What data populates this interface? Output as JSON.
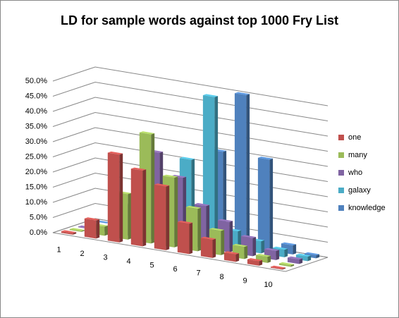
{
  "chart_data": {
    "type": "bar3d",
    "title": "LD for sample words against top 1000 Fry List",
    "categories": [
      "1",
      "2",
      "3",
      "4",
      "5",
      "6",
      "7",
      "8",
      "9",
      "10"
    ],
    "series": [
      {
        "name": "one",
        "color": "#c0504d",
        "values": [
          0.5,
          6,
          29,
          25,
          21,
          10,
          6,
          2.5,
          1.5,
          0.3
        ]
      },
      {
        "name": "many",
        "color": "#9bbb59",
        "values": [
          0.3,
          3,
          15,
          36,
          23,
          14,
          8,
          4,
          2,
          0.5
        ]
      },
      {
        "name": "who",
        "color": "#8064a2",
        "values": [
          0.2,
          1.5,
          10,
          29,
          22,
          14,
          10,
          6,
          3,
          1.5
        ]
      },
      {
        "name": "galaxy",
        "color": "#4bacc6",
        "values": [
          0.1,
          1.5,
          4,
          6,
          27,
          49,
          6,
          4,
          2.5,
          1.5
        ]
      },
      {
        "name": "knowledge",
        "color": "#4f81bd",
        "values": [
          0,
          0.5,
          2,
          3,
          5,
          30,
          50,
          30,
          3,
          1
        ]
      }
    ],
    "ylim": [
      0,
      50
    ],
    "yticks": [
      {
        "value": 0,
        "label": "0.0%"
      },
      {
        "value": 5,
        "label": "5.0%"
      },
      {
        "value": 10,
        "label": "10.0%"
      },
      {
        "value": 15,
        "label": "15.0%"
      },
      {
        "value": 20,
        "label": "20.0%"
      },
      {
        "value": 25,
        "label": "25.0%"
      },
      {
        "value": 30,
        "label": "30.0%"
      },
      {
        "value": 35,
        "label": "35.0%"
      },
      {
        "value": 40,
        "label": "40.0%"
      },
      {
        "value": 45,
        "label": "45.0%"
      },
      {
        "value": 50,
        "label": "50.0%"
      }
    ],
    "grid": true,
    "legend": "right"
  }
}
